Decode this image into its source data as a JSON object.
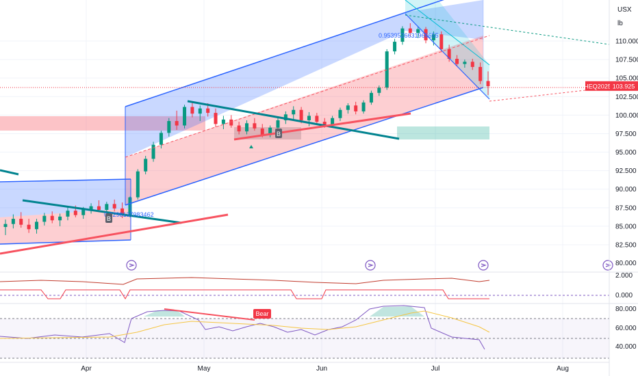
{
  "chart_data": {
    "type": "candlestick",
    "symbol_label": "HEQ2025",
    "last_price": "103.925",
    "units": [
      "USX",
      "lb"
    ],
    "price_axis": {
      "ylim": [
        81.5,
        114.5
      ],
      "ticks": [
        "110.000",
        "107.500",
        "105.000",
        "102.500",
        "100.000",
        "97.500",
        "95.000",
        "92.500",
        "90.000",
        "87.500",
        "85.000",
        "82.500"
      ]
    },
    "time_axis": {
      "labels": [
        "Apr",
        "May",
        "Jun",
        "Jul",
        "Aug"
      ]
    },
    "osc1_axis": {
      "ticks": [
        "2.000",
        "0.000"
      ]
    },
    "osc2_axis": {
      "ticks": [
        "80.000",
        "60.000",
        "40.000"
      ]
    },
    "annotations": {
      "bear_label": "Bear",
      "b_marker": "B",
      "fib_value_1": "0.9539526631966655",
      "fib_value_2": "0.8298137983462"
    },
    "colors": {
      "up": "#089981",
      "down": "#f23645",
      "channel_blue": "#2962ff",
      "zone_red": "#f7525f",
      "zone_teal": "#22ab94",
      "rsi_line": "#7e57c2",
      "ma_line": "#f5c542",
      "osc_red": "#c0392b"
    },
    "candles": [
      [
        84.9,
        85.9,
        83.8,
        85.3
      ],
      [
        85.3,
        86.6,
        84.7,
        86.0
      ],
      [
        86.0,
        86.9,
        84.8,
        85.2
      ],
      [
        85.2,
        86.0,
        84.1,
        84.6
      ],
      [
        84.6,
        86.0,
        84.0,
        85.6
      ],
      [
        85.6,
        86.8,
        85.1,
        86.4
      ],
      [
        86.4,
        87.0,
        85.4,
        85.8
      ],
      [
        85.8,
        86.7,
        85.0,
        86.3
      ],
      [
        86.3,
        87.6,
        85.8,
        87.1
      ],
      [
        87.1,
        87.8,
        86.2,
        86.5
      ],
      [
        86.5,
        87.6,
        86.0,
        87.3
      ],
      [
        87.3,
        88.1,
        86.7,
        87.7
      ],
      [
        87.7,
        88.5,
        86.9,
        87.2
      ],
      [
        87.2,
        88.3,
        86.8,
        88.0
      ],
      [
        88.0,
        88.6,
        87.0,
        87.4
      ],
      [
        87.4,
        88.2,
        86.1,
        86.5
      ],
      [
        86.5,
        89.0,
        86.2,
        88.9
      ],
      [
        88.9,
        92.7,
        88.6,
        92.4
      ],
      [
        92.4,
        94.5,
        92.0,
        94.1
      ],
      [
        94.1,
        96.4,
        93.7,
        96.0
      ],
      [
        96.0,
        97.9,
        95.5,
        97.6
      ],
      [
        97.6,
        99.6,
        97.1,
        99.2
      ],
      [
        99.2,
        100.6,
        98.0,
        98.6
      ],
      [
        98.6,
        101.4,
        98.2,
        101.1
      ],
      [
        101.1,
        101.8,
        99.7,
        100.2
      ],
      [
        100.2,
        101.3,
        99.2,
        100.9
      ],
      [
        100.9,
        101.6,
        99.8,
        100.3
      ],
      [
        100.3,
        100.9,
        98.4,
        98.8
      ],
      [
        98.8,
        99.9,
        98.1,
        99.4
      ],
      [
        99.4,
        100.0,
        98.3,
        98.6
      ],
      [
        98.6,
        99.1,
        97.4,
        97.8
      ],
      [
        97.8,
        99.3,
        97.4,
        98.9
      ],
      [
        98.9,
        99.6,
        97.9,
        98.2
      ],
      [
        98.2,
        98.8,
        97.0,
        97.3
      ],
      [
        97.3,
        98.6,
        97.0,
        98.3
      ],
      [
        98.3,
        99.7,
        97.9,
        99.3
      ],
      [
        99.3,
        100.5,
        98.8,
        100.1
      ],
      [
        100.1,
        101.2,
        99.4,
        100.7
      ],
      [
        100.7,
        101.1,
        98.9,
        99.3
      ],
      [
        99.3,
        100.4,
        98.5,
        99.9
      ],
      [
        99.9,
        100.3,
        98.8,
        99.1
      ],
      [
        99.1,
        99.6,
        98.3,
        98.7
      ],
      [
        98.7,
        99.9,
        98.4,
        99.6
      ],
      [
        99.6,
        101.0,
        99.2,
        100.7
      ],
      [
        100.7,
        101.6,
        100.2,
        101.3
      ],
      [
        101.3,
        101.8,
        100.1,
        100.5
      ],
      [
        100.5,
        102.0,
        100.2,
        101.7
      ],
      [
        101.7,
        103.3,
        101.4,
        103.0
      ],
      [
        103.0,
        104.0,
        102.6,
        103.7
      ],
      [
        103.7,
        108.9,
        103.4,
        108.6
      ],
      [
        108.6,
        110.3,
        108.2,
        109.9
      ],
      [
        109.9,
        112.0,
        109.5,
        111.7
      ],
      [
        111.7,
        112.4,
        110.6,
        111.1
      ],
      [
        111.1,
        112.0,
        110.4,
        111.6
      ],
      [
        111.6,
        111.9,
        109.7,
        110.1
      ],
      [
        110.1,
        111.3,
        109.4,
        110.9
      ],
      [
        110.9,
        111.3,
        108.5,
        108.9
      ],
      [
        108.9,
        109.5,
        107.2,
        107.6
      ],
      [
        107.6,
        108.1,
        106.6,
        106.9
      ],
      [
        106.9,
        107.5,
        106.4,
        107.2
      ],
      [
        107.2,
        107.6,
        106.1,
        106.5
      ],
      [
        106.5,
        107.1,
        104.2,
        104.6
      ],
      [
        104.6,
        105.9,
        102.7,
        103.9
      ]
    ]
  }
}
